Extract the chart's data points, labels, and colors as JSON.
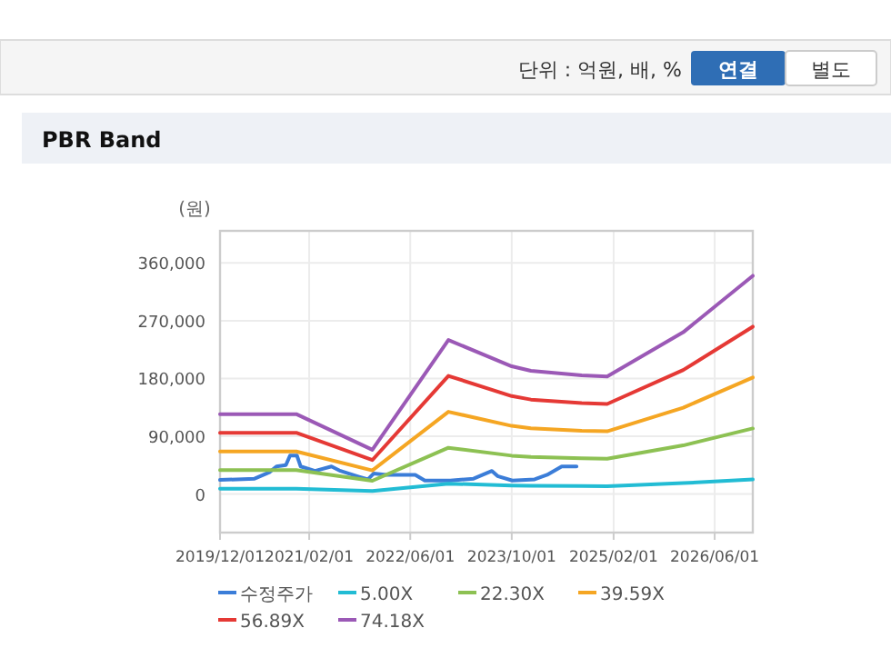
{
  "chart_data": {
    "type": "line",
    "title": "PBR Band",
    "ylabel": "(원)",
    "annotations": [
      "단위 : 억원, 배, %",
      "연결",
      "별도"
    ],
    "xlim": [
      "2019-12-01",
      "2026-12-01"
    ],
    "xticks": [
      {
        "value": "2019-12-01",
        "label": "2019/12/01"
      },
      {
        "value": "2021-02-01",
        "label": "2021/02/01"
      },
      {
        "value": "2022-06-01",
        "label": "2022/06/01"
      },
      {
        "value": "2023-10-01",
        "label": "2023/10/01"
      },
      {
        "value": "2025-02-01",
        "label": "2025/02/01"
      },
      {
        "value": "2026-06-01",
        "label": "2026/06/01"
      }
    ],
    "ylim": [
      -60000,
      410000
    ],
    "yticks": [
      0,
      {
        "value": 90000,
        "label": "90,000"
      },
      {
        "value": 180000,
        "label": "180,000"
      },
      {
        "value": 270000,
        "label": "270,000"
      },
      {
        "value": 360000,
        "label": "360,000"
      }
    ],
    "grid": true,
    "legend": "bottom",
    "marker": "none",
    "line_style": "solid",
    "series": [
      {
        "name": "수정주가",
        "color": "#3b7dd8",
        "x": [
          "2019-12-01",
          "2020-05-15",
          "2020-07-25",
          "2020-08-28",
          "2020-10-12",
          "2020-11-01",
          "2020-12-04",
          "2020-12-22",
          "2021-03-01",
          "2021-05-19",
          "2021-07-01",
          "2021-09-28",
          "2021-11-10",
          "2021-12-07",
          "2022-02-07",
          "2022-06-25",
          "2022-08-10",
          "2022-12-10",
          "2023-04-01",
          "2023-06-28",
          "2023-07-25",
          "2023-10-04",
          "2024-01-19",
          "2024-03-19",
          "2024-05-28",
          "2024-08-07"
        ],
        "values": [
          22000,
          24000,
          34000,
          43000,
          45000,
          60000,
          60000,
          43000,
          36000,
          43000,
          36000,
          27000,
          23000,
          32000,
          30000,
          30000,
          21000,
          21000,
          24000,
          36000,
          28000,
          21000,
          23000,
          30000,
          43000,
          43000
        ]
      },
      {
        "name": "5.00X",
        "color": "#22bcd4",
        "x": [
          "2019-12-01",
          "2020-12-01",
          "2021-12-01",
          "2022-12-01",
          "2023-10-01",
          "2024-01-01",
          "2024-09-01",
          "2025-01-01",
          "2026-01-01",
          "2026-12-01"
        ],
        "values": [
          8400,
          8400,
          4700,
          16200,
          13400,
          12900,
          12500,
          12300,
          17000,
          22900
        ]
      },
      {
        "name": "22.30X",
        "color": "#8dc153",
        "x": [
          "2019-12-01",
          "2020-12-01",
          "2021-12-01",
          "2022-12-01",
          "2023-10-01",
          "2024-01-01",
          "2024-09-01",
          "2025-01-01",
          "2026-01-01",
          "2026-12-01"
        ],
        "values": [
          37400,
          37400,
          20700,
          72100,
          59800,
          57700,
          55600,
          55000,
          75800,
          102200
        ]
      },
      {
        "name": "39.59X",
        "color": "#f5a623",
        "x": [
          "2019-12-01",
          "2020-12-01",
          "2021-12-01",
          "2022-12-01",
          "2023-10-01",
          "2024-01-01",
          "2024-09-01",
          "2025-01-01",
          "2026-01-01",
          "2026-12-01"
        ],
        "values": [
          66400,
          66400,
          36800,
          128100,
          106200,
          102500,
          98700,
          97700,
          134500,
          181500
        ]
      },
      {
        "name": "56.89X",
        "color": "#e53935",
        "x": [
          "2019-12-01",
          "2020-12-01",
          "2021-12-01",
          "2022-12-01",
          "2023-10-01",
          "2024-01-01",
          "2024-09-01",
          "2025-01-01",
          "2026-01-01",
          "2026-12-01"
        ],
        "values": [
          95500,
          95500,
          52900,
          184100,
          152600,
          147200,
          141900,
          140300,
          193300,
          260700
        ]
      },
      {
        "name": "74.18X",
        "color": "#9b59b6",
        "x": [
          "2019-12-01",
          "2020-12-01",
          "2021-12-01",
          "2022-12-01",
          "2023-10-01",
          "2024-01-01",
          "2024-09-01",
          "2025-01-01",
          "2026-01-01",
          "2026-12-01"
        ],
        "values": [
          124500,
          124500,
          69000,
          240000,
          199000,
          192000,
          185000,
          183000,
          252000,
          340000
        ]
      }
    ]
  }
}
